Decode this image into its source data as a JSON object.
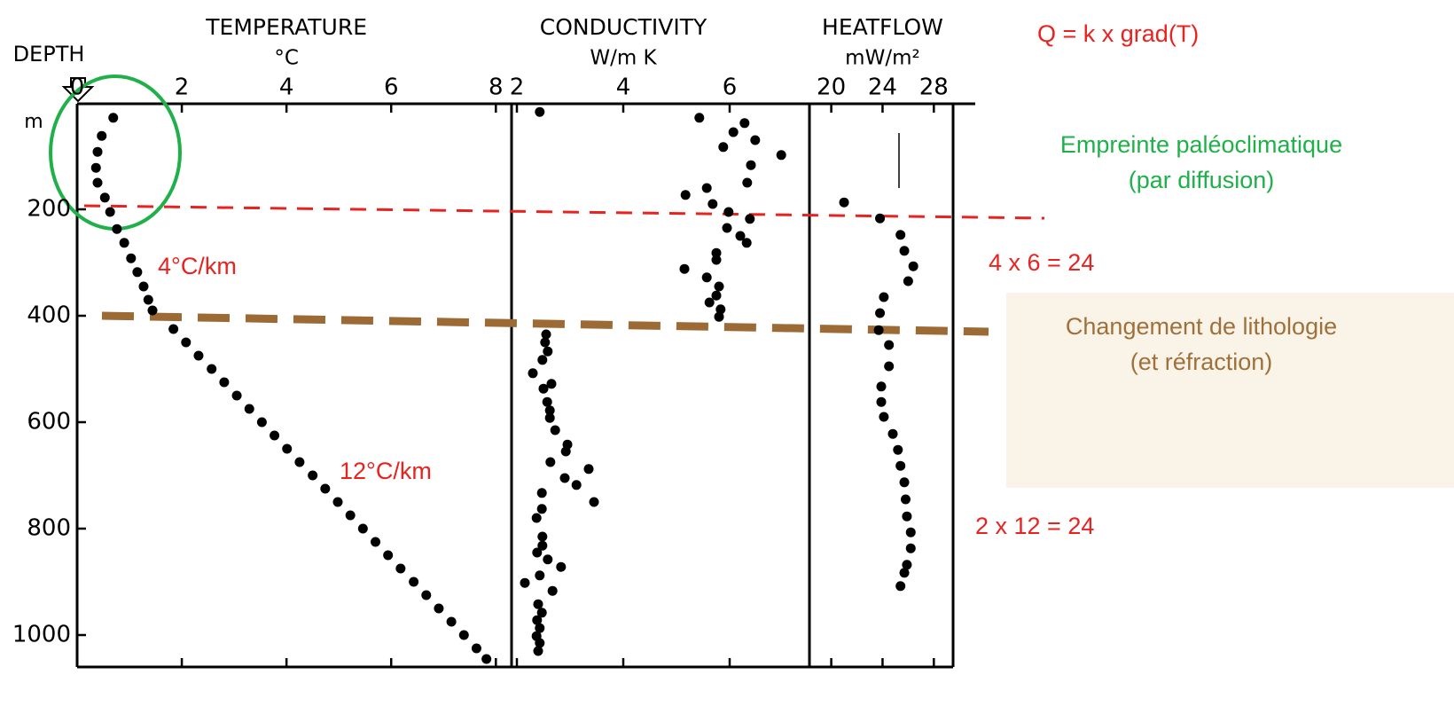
{
  "chart_data": [
    {
      "type": "scatter",
      "title": "TEMPERATURE",
      "x_label": "°C",
      "y_label": "DEPTH",
      "y_unit": "m",
      "xlim": [
        0,
        8.3
      ],
      "xticks": [
        0,
        2,
        4,
        6,
        8
      ],
      "ylim": [
        0,
        1060
      ],
      "yticks": [
        200,
        400,
        600,
        800,
        1000
      ],
      "color": "#000000",
      "x": [
        0.69,
        0.47,
        0.39,
        0.36,
        0.39,
        0.53,
        0.63,
        0.76,
        0.9,
        1.03,
        1.15,
        1.27,
        1.36,
        1.44,
        1.84,
        2.08,
        2.32,
        2.57,
        2.81,
        3.05,
        3.29,
        3.53,
        3.77,
        4.01,
        4.25,
        4.5,
        4.74,
        4.98,
        5.22,
        5.46,
        5.7,
        5.94,
        6.18,
        6.43,
        6.67,
        6.91,
        7.15,
        7.39,
        7.63,
        7.82
      ],
      "y": [
        28,
        62,
        92,
        122,
        150,
        178,
        205,
        237,
        263,
        292,
        318,
        345,
        370,
        390,
        425,
        450,
        475,
        500,
        525,
        550,
        575,
        600,
        625,
        650,
        675,
        700,
        725,
        750,
        775,
        800,
        825,
        850,
        875,
        900,
        925,
        950,
        975,
        1000,
        1025,
        1045
      ]
    },
    {
      "type": "scatter",
      "title": "CONDUCTIVITY",
      "x_label": "W/m K",
      "xlim": [
        1.9,
        7.5
      ],
      "xticks": [
        2,
        4,
        6
      ],
      "ylim": [
        0,
        1060
      ],
      "color": "#000000",
      "x": [
        2.43,
        5.43,
        6.28,
        6.07,
        6.48,
        5.88,
        6.97,
        6.4,
        6.33,
        5.57,
        5.17,
        5.68,
        5.98,
        6.38,
        5.95,
        6.2,
        6.32,
        5.75,
        5.75,
        5.15,
        5.57,
        5.8,
        5.75,
        5.62,
        5.83,
        5.8,
        2.55,
        2.53,
        2.58,
        2.48,
        2.3,
        2.5,
        2.65,
        2.57,
        2.62,
        2.62,
        2.72,
        2.95,
        2.92,
        2.63,
        3.35,
        2.9,
        3.12,
        3.45,
        2.47,
        2.47,
        2.37,
        2.48,
        2.48,
        2.38,
        2.58,
        2.83,
        2.43,
        2.15,
        2.67,
        2.4,
        2.47,
        2.38,
        2.43,
        2.37,
        2.43,
        2.4
      ],
      "y": [
        17,
        28,
        38,
        55,
        70,
        83,
        98,
        117,
        150,
        160,
        173,
        190,
        205,
        218,
        235,
        250,
        263,
        282,
        295,
        312,
        328,
        345,
        362,
        375,
        388,
        402,
        435,
        450,
        467,
        483,
        508,
        537,
        528,
        562,
        578,
        592,
        615,
        642,
        655,
        675,
        688,
        705,
        718,
        750,
        733,
        763,
        780,
        815,
        832,
        845,
        858,
        872,
        888,
        902,
        917,
        942,
        958,
        972,
        987,
        1002,
        1015,
        1030
      ]
    },
    {
      "type": "scatter",
      "title": "HEATFLOW",
      "x_label": "mW/m²",
      "xlim": [
        18.3,
        29.5
      ],
      "xticks": [
        20,
        24,
        28
      ],
      "ylim": [
        0,
        1060
      ],
      "color": "#000000",
      "x": [
        21.0,
        23.8,
        25.4,
        25.7,
        26.4,
        26.0,
        24.1,
        23.8,
        23.7,
        24.5,
        24.5,
        23.9,
        23.9,
        24.1,
        24.8,
        25.2,
        25.4,
        25.7,
        25.8,
        25.9,
        26.2,
        26.2,
        25.9,
        25.7,
        25.4
      ],
      "y": [
        187,
        217,
        248,
        278,
        307,
        335,
        365,
        395,
        427,
        455,
        495,
        533,
        562,
        590,
        622,
        652,
        682,
        713,
        745,
        777,
        807,
        837,
        868,
        883,
        908
      ]
    }
  ],
  "annotations": [
    "Q = k x grad(T)",
    "Empreinte paléoclimatique",
    "(par diffusion)",
    "4 x 6 = 24",
    "Changement de lithologie",
    "(et réfraction)",
    "2 x 12 = 24",
    "4°C/km",
    "12°C/km"
  ]
}
